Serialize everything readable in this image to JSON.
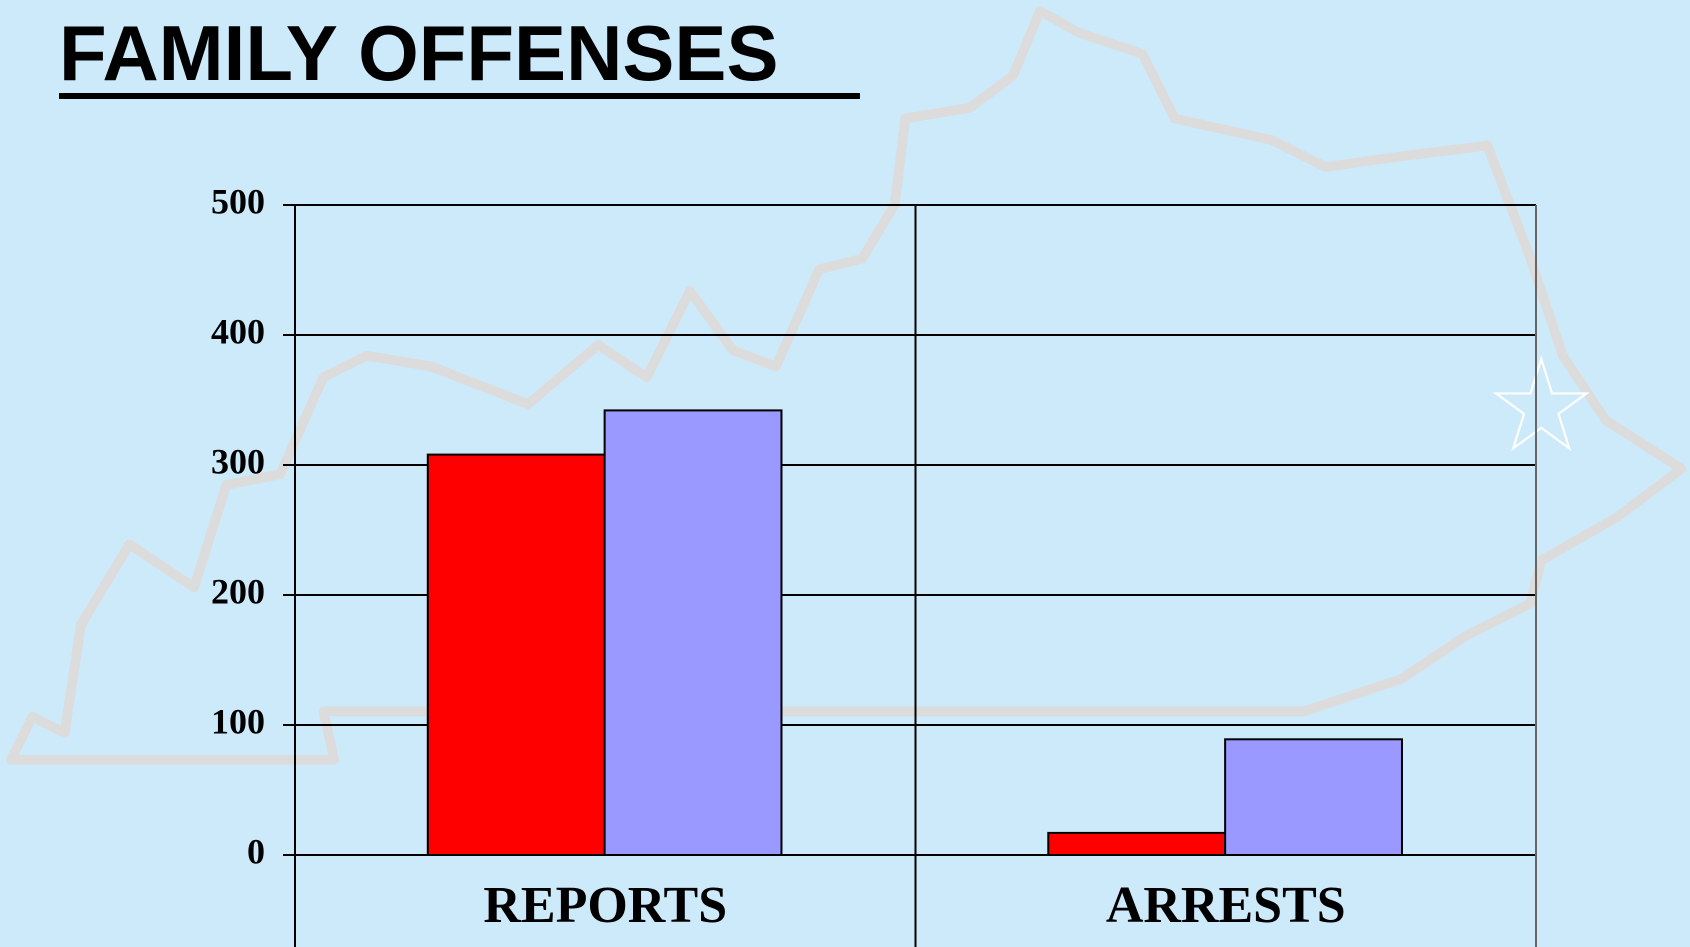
{
  "chart_data": {
    "type": "bar",
    "title": "FAMILY OFFENSES",
    "categories": [
      "REPORTS",
      "ARRESTS"
    ],
    "series": [
      {
        "color": "#ff0000",
        "values": [
          308,
          17
        ]
      },
      {
        "color": "#9999ff",
        "values": [
          342,
          89
        ]
      }
    ],
    "ylim": [
      0,
      500
    ],
    "yticks": [
      0,
      100,
      200,
      300,
      400,
      500
    ],
    "grid": true
  }
}
